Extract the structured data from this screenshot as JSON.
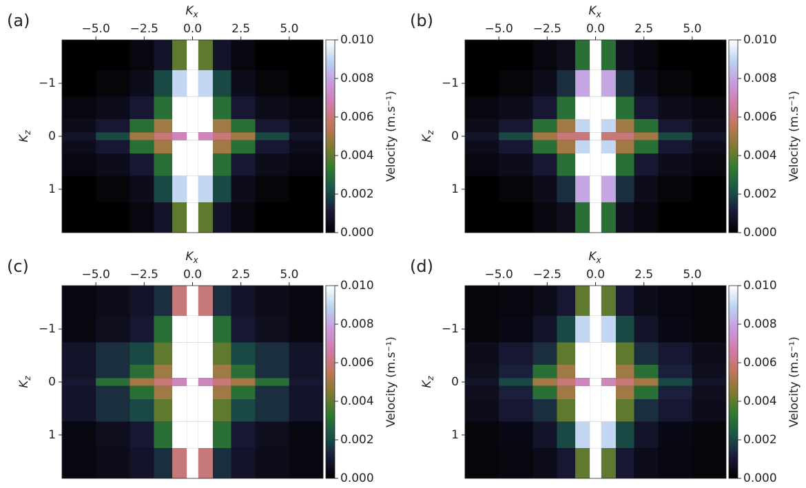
{
  "chart_data": [
    {
      "type": "heatmap",
      "panel_label": "(a)",
      "xlabel": {
        "text": "K",
        "subscript": "x"
      },
      "ylabel": {
        "text": "K",
        "subscript": "z"
      },
      "colorbar_label": "Velocity (m.s⁻¹)",
      "x": [
        -6,
        -4,
        -2.5,
        -1.5,
        -0.6,
        0,
        0.6,
        1.5,
        2.5,
        4,
        6
      ],
      "y": [
        -1.5,
        -1,
        -0.5,
        -0.15,
        0,
        0.15,
        0.5,
        1,
        1.5
      ],
      "z": [
        [
          0,
          0,
          0.0003,
          0.0008,
          0.004,
          0.01,
          0.004,
          0.0008,
          0.0003,
          0,
          0
        ],
        [
          0,
          0.0002,
          0.0005,
          0.002,
          0.009,
          0.01,
          0.009,
          0.002,
          0.0005,
          0.0002,
          0
        ],
        [
          0.0003,
          0.0005,
          0.001,
          0.003,
          0.01,
          0.01,
          0.01,
          0.003,
          0.001,
          0.0005,
          0.0003
        ],
        [
          0.0005,
          0.001,
          0.003,
          0.005,
          0.01,
          0.01,
          0.01,
          0.005,
          0.003,
          0.001,
          0.0005
        ],
        [
          0.0008,
          0.002,
          0.005,
          0.006,
          0.007,
          0.01,
          0.007,
          0.006,
          0.005,
          0.002,
          0.0008
        ],
        [
          0.0005,
          0.001,
          0.003,
          0.005,
          0.01,
          0.01,
          0.01,
          0.005,
          0.003,
          0.001,
          0.0005
        ],
        [
          0.0003,
          0.0005,
          0.001,
          0.003,
          0.01,
          0.01,
          0.01,
          0.003,
          0.001,
          0.0005,
          0.0003
        ],
        [
          0,
          0.0002,
          0.0005,
          0.002,
          0.009,
          0.01,
          0.009,
          0.002,
          0.0005,
          0.0002,
          0
        ],
        [
          0,
          0,
          0.0003,
          0.0008,
          0.004,
          0.01,
          0.004,
          0.0008,
          0.0003,
          0,
          0
        ]
      ],
      "xlim": [
        -6.75,
        6.75
      ],
      "ylim": [
        -1.82,
        1.82
      ],
      "y_inverted": true,
      "xticks": [
        {
          "value": -5,
          "label": "−5.0"
        },
        {
          "value": -2.5,
          "label": "−2.5"
        },
        {
          "value": 0,
          "label": "0.0"
        },
        {
          "value": 2.5,
          "label": "2.5"
        },
        {
          "value": 5,
          "label": "5.0"
        }
      ],
      "yticks": [
        {
          "value": -1,
          "label": "−1"
        },
        0,
        1
      ],
      "clim": [
        0,
        0.01
      ],
      "cticks": [
        {
          "value": 0,
          "label": "0.000"
        },
        {
          "value": 0.002,
          "label": "0.002"
        },
        {
          "value": 0.004,
          "label": "0.004"
        },
        {
          "value": 0.006,
          "label": "0.006"
        },
        {
          "value": 0.008,
          "label": "0.008"
        },
        {
          "value": 0.01,
          "label": "0.010"
        }
      ],
      "colormap": [
        "#000000",
        "#1a1a3a",
        "#1a5448",
        "#2f7a2e",
        "#7f7a30",
        "#c0775a",
        "#d17ba8",
        "#c79bdf",
        "#bcd3f0",
        "#ffffff"
      ]
    },
    {
      "type": "heatmap",
      "panel_label": "(b)",
      "xlabel": {
        "text": "K",
        "subscript": "x"
      },
      "ylabel": {
        "text": "K",
        "subscript": "z"
      },
      "colorbar_label": "Velocity (m.s⁻¹)",
      "x": [
        -6,
        -4,
        -2.5,
        -1.5,
        -0.6,
        0,
        0.6,
        1.5,
        2.5,
        4,
        6
      ],
      "y": [
        -1.5,
        -1,
        -0.5,
        -0.15,
        0,
        0.15,
        0.5,
        1,
        1.5
      ],
      "z": [
        [
          0,
          0,
          0.0003,
          0.0006,
          0.003,
          0.01,
          0.003,
          0.0006,
          0.0003,
          0,
          0
        ],
        [
          0,
          0.0002,
          0.0005,
          0.0015,
          0.008,
          0.01,
          0.008,
          0.0015,
          0.0005,
          0.0002,
          0
        ],
        [
          0.0003,
          0.0005,
          0.001,
          0.003,
          0.01,
          0.01,
          0.01,
          0.003,
          0.001,
          0.0005,
          0.0003
        ],
        [
          0.0005,
          0.001,
          0.003,
          0.005,
          0.009,
          0.01,
          0.009,
          0.005,
          0.003,
          0.001,
          0.0005
        ],
        [
          0.0008,
          0.002,
          0.005,
          0.006,
          0.006,
          0.01,
          0.006,
          0.006,
          0.005,
          0.002,
          0.0008
        ],
        [
          0.0005,
          0.001,
          0.003,
          0.005,
          0.009,
          0.01,
          0.009,
          0.005,
          0.003,
          0.001,
          0.0005
        ],
        [
          0.0003,
          0.0005,
          0.001,
          0.003,
          0.01,
          0.01,
          0.01,
          0.003,
          0.001,
          0.0005,
          0.0003
        ],
        [
          0,
          0.0002,
          0.0005,
          0.0015,
          0.008,
          0.01,
          0.008,
          0.0015,
          0.0005,
          0.0002,
          0
        ],
        [
          0,
          0,
          0.0003,
          0.0006,
          0.003,
          0.01,
          0.003,
          0.0006,
          0.0003,
          0,
          0
        ]
      ],
      "xlim": [
        -6.75,
        6.75
      ],
      "ylim": [
        -1.82,
        1.82
      ],
      "y_inverted": true,
      "xticks": [
        {
          "value": -5,
          "label": "−5.0"
        },
        {
          "value": -2.5,
          "label": "−2.5"
        },
        {
          "value": 0,
          "label": "0.0"
        },
        {
          "value": 2.5,
          "label": "2.5"
        },
        {
          "value": 5,
          "label": "5.0"
        }
      ],
      "yticks": [
        {
          "value": -1,
          "label": "−1"
        },
        0,
        1
      ],
      "clim": [
        0,
        0.01
      ],
      "cticks": [
        {
          "value": 0,
          "label": "0.000"
        },
        {
          "value": 0.002,
          "label": "0.002"
        },
        {
          "value": 0.004,
          "label": "0.004"
        },
        {
          "value": 0.006,
          "label": "0.006"
        },
        {
          "value": 0.008,
          "label": "0.008"
        },
        {
          "value": 0.01,
          "label": "0.010"
        }
      ],
      "colormap": [
        "#000000",
        "#1a1a3a",
        "#1a5448",
        "#2f7a2e",
        "#7f7a30",
        "#c0775a",
        "#d17ba8",
        "#c79bdf",
        "#bcd3f0",
        "#ffffff"
      ]
    },
    {
      "type": "heatmap",
      "panel_label": "(c)",
      "xlabel": {
        "text": "K",
        "subscript": "x"
      },
      "ylabel": {
        "text": "K",
        "subscript": "z"
      },
      "colorbar_label": "Velocity (m.s⁻¹)",
      "x": [
        -6,
        -4,
        -2.5,
        -1.5,
        -0.6,
        0,
        0.6,
        1.5,
        2.5,
        4,
        6
      ],
      "y": [
        -1.5,
        -1,
        -0.5,
        -0.15,
        0,
        0.15,
        0.5,
        1,
        1.5
      ],
      "z": [
        [
          0.0003,
          0.0005,
          0.0008,
          0.0015,
          0.006,
          0.01,
          0.006,
          0.0015,
          0.0008,
          0.0005,
          0.0003
        ],
        [
          0.0003,
          0.0006,
          0.001,
          0.003,
          0.01,
          0.01,
          0.01,
          0.003,
          0.001,
          0.0006,
          0.0003
        ],
        [
          0.0008,
          0.0015,
          0.002,
          0.004,
          0.01,
          0.01,
          0.01,
          0.004,
          0.002,
          0.0015,
          0.0008
        ],
        [
          0.0008,
          0.0015,
          0.003,
          0.005,
          0.01,
          0.01,
          0.01,
          0.005,
          0.003,
          0.0015,
          0.0008
        ],
        [
          0.001,
          0.003,
          0.005,
          0.006,
          0.007,
          0.01,
          0.007,
          0.006,
          0.005,
          0.003,
          0.001
        ],
        [
          0.0008,
          0.0015,
          0.003,
          0.005,
          0.01,
          0.01,
          0.01,
          0.005,
          0.003,
          0.0015,
          0.0008
        ],
        [
          0.0008,
          0.0015,
          0.002,
          0.004,
          0.01,
          0.01,
          0.01,
          0.004,
          0.002,
          0.0015,
          0.0008
        ],
        [
          0.0003,
          0.0006,
          0.001,
          0.003,
          0.01,
          0.01,
          0.01,
          0.003,
          0.001,
          0.0006,
          0.0003
        ],
        [
          0.0003,
          0.0005,
          0.0008,
          0.0015,
          0.006,
          0.01,
          0.006,
          0.0015,
          0.0008,
          0.0005,
          0.0003
        ]
      ],
      "xlim": [
        -6.75,
        6.75
      ],
      "ylim": [
        -1.82,
        1.82
      ],
      "y_inverted": true,
      "xticks": [
        {
          "value": -5,
          "label": "−5.0"
        },
        {
          "value": -2.5,
          "label": "−2.5"
        },
        {
          "value": 0,
          "label": "0.0"
        },
        {
          "value": 2.5,
          "label": "2.5"
        },
        {
          "value": 5,
          "label": "5.0"
        }
      ],
      "yticks": [
        {
          "value": -1,
          "label": "−1"
        },
        0,
        1
      ],
      "clim": [
        0,
        0.01
      ],
      "cticks": [
        {
          "value": 0,
          "label": "0.000"
        },
        {
          "value": 0.002,
          "label": "0.002"
        },
        {
          "value": 0.004,
          "label": "0.004"
        },
        {
          "value": 0.006,
          "label": "0.006"
        },
        {
          "value": 0.008,
          "label": "0.008"
        },
        {
          "value": 0.01,
          "label": "0.010"
        }
      ],
      "colormap": [
        "#000000",
        "#1a1a3a",
        "#1a5448",
        "#2f7a2e",
        "#7f7a30",
        "#c0775a",
        "#d17ba8",
        "#c79bdf",
        "#bcd3f0",
        "#ffffff"
      ]
    },
    {
      "type": "heatmap",
      "panel_label": "(d)",
      "xlabel": {
        "text": "K",
        "subscript": "x"
      },
      "ylabel": {
        "text": "K",
        "subscript": "z"
      },
      "colorbar_label": "Velocity (m.s⁻¹)",
      "x": [
        -6,
        -4,
        -2.5,
        -1.5,
        -0.6,
        0,
        0.6,
        1.5,
        2.5,
        4,
        6
      ],
      "y": [
        -1.5,
        -1,
        -0.5,
        -0.15,
        0,
        0.15,
        0.5,
        1,
        1.5
      ],
      "z": [
        [
          0.0002,
          0.0003,
          0.0005,
          0.001,
          0.004,
          0.01,
          0.004,
          0.001,
          0.0005,
          0.0003,
          0.0002
        ],
        [
          0.0002,
          0.0004,
          0.0008,
          0.002,
          0.009,
          0.01,
          0.009,
          0.002,
          0.0008,
          0.0004,
          0.0002
        ],
        [
          0.0005,
          0.001,
          0.0015,
          0.004,
          0.01,
          0.01,
          0.01,
          0.004,
          0.0015,
          0.001,
          0.0005
        ],
        [
          0.0006,
          0.0012,
          0.003,
          0.005,
          0.01,
          0.01,
          0.01,
          0.005,
          0.003,
          0.0012,
          0.0006
        ],
        [
          0.0008,
          0.002,
          0.005,
          0.006,
          0.007,
          0.01,
          0.007,
          0.006,
          0.005,
          0.002,
          0.0008
        ],
        [
          0.0006,
          0.0012,
          0.003,
          0.005,
          0.01,
          0.01,
          0.01,
          0.005,
          0.003,
          0.0012,
          0.0006
        ],
        [
          0.0005,
          0.001,
          0.0015,
          0.004,
          0.01,
          0.01,
          0.01,
          0.004,
          0.0015,
          0.001,
          0.0005
        ],
        [
          0.0002,
          0.0004,
          0.0008,
          0.002,
          0.009,
          0.01,
          0.009,
          0.002,
          0.0008,
          0.0004,
          0.0002
        ],
        [
          0.0002,
          0.0003,
          0.0005,
          0.001,
          0.004,
          0.01,
          0.004,
          0.001,
          0.0005,
          0.0003,
          0.0002
        ]
      ],
      "xlim": [
        -6.75,
        6.75
      ],
      "ylim": [
        -1.82,
        1.82
      ],
      "y_inverted": true,
      "xticks": [
        {
          "value": -5,
          "label": "−5.0"
        },
        {
          "value": -2.5,
          "label": "−2.5"
        },
        {
          "value": 0,
          "label": "0.0"
        },
        {
          "value": 2.5,
          "label": "2.5"
        },
        {
          "value": 5,
          "label": "5.0"
        }
      ],
      "yticks": [
        {
          "value": -1,
          "label": "−1"
        },
        0,
        1
      ],
      "clim": [
        0,
        0.01
      ],
      "cticks": [
        {
          "value": 0,
          "label": "0.000"
        },
        {
          "value": 0.002,
          "label": "0.002"
        },
        {
          "value": 0.004,
          "label": "0.004"
        },
        {
          "value": 0.006,
          "label": "0.006"
        },
        {
          "value": 0.008,
          "label": "0.008"
        },
        {
          "value": 0.01,
          "label": "0.010"
        }
      ],
      "colormap": [
        "#000000",
        "#1a1a3a",
        "#1a5448",
        "#2f7a2e",
        "#7f7a30",
        "#c0775a",
        "#d17ba8",
        "#c79bdf",
        "#bcd3f0",
        "#ffffff"
      ]
    }
  ]
}
